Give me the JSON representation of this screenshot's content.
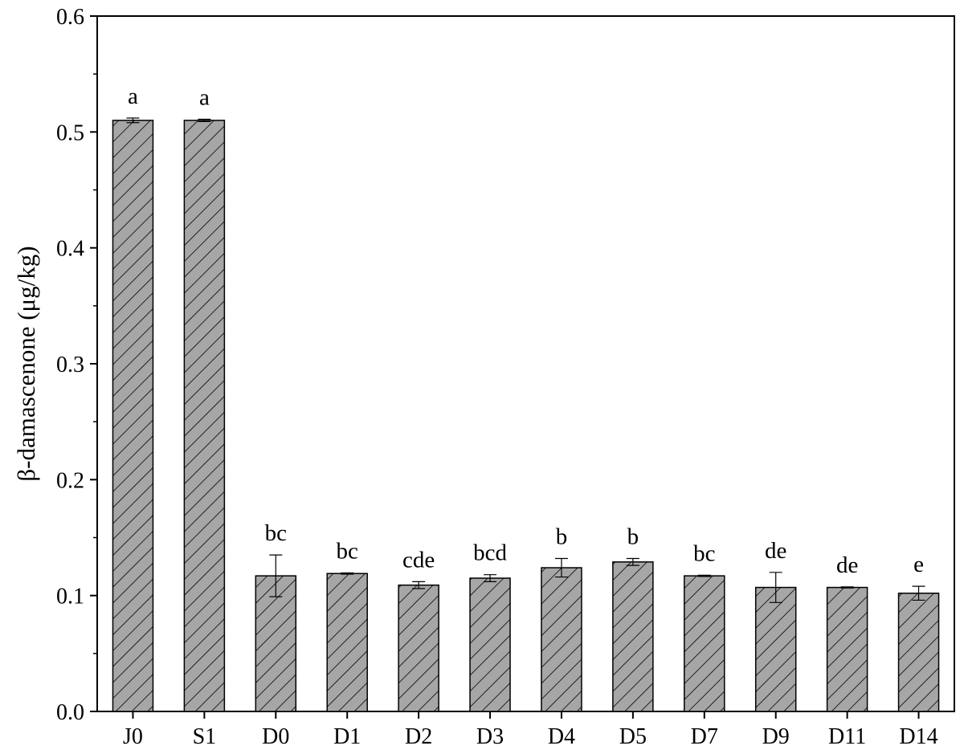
{
  "chart_data": {
    "type": "bar",
    "title": "",
    "xlabel": "",
    "ylabel": "β-damascenone (μg/kg)",
    "ylim": [
      0,
      0.6
    ],
    "yticks": [
      "0.0",
      "0.1",
      "0.2",
      "0.3",
      "0.4",
      "0.5",
      "0.6"
    ],
    "grid": false,
    "legend": "none",
    "categories": [
      "J0",
      "S1",
      "D0",
      "D1",
      "D2",
      "D3",
      "D4",
      "D5",
      "D7",
      "D9",
      "D11",
      "D14"
    ],
    "values": [
      0.51,
      0.51,
      0.117,
      0.119,
      0.109,
      0.115,
      0.124,
      0.129,
      0.117,
      0.107,
      0.107,
      0.102
    ],
    "errors": [
      0.002,
      0.001,
      0.018,
      0.0005,
      0.003,
      0.003,
      0.008,
      0.003,
      0.0005,
      0.013,
      0.0005,
      0.006
    ],
    "significance_letters": [
      "a",
      "a",
      "bc",
      "bc",
      "cde",
      "bcd",
      "b",
      "b",
      "bc",
      "de",
      "de",
      "e"
    ],
    "bar_fill": "#a6a6a6",
    "bar_pattern": "diagonal-hatch"
  }
}
